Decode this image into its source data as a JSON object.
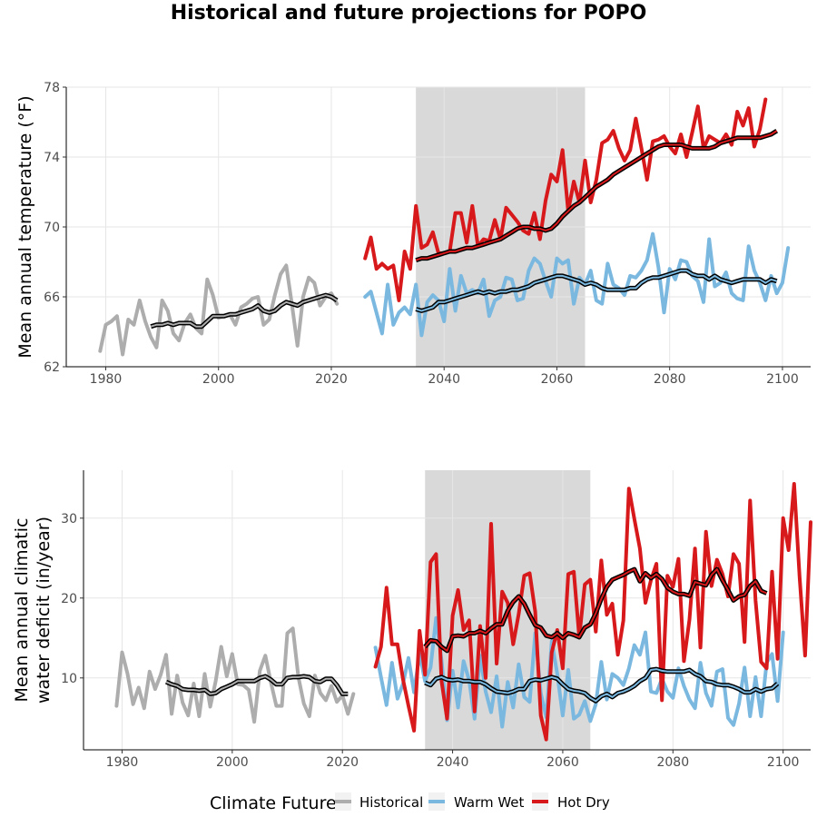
{
  "colors": {
    "historical": "#adadad",
    "warm_wet": "#7ab8e0",
    "hot_dry": "#d7191c",
    "smooth_outline": "#000000",
    "shade": "#d9d9d9",
    "grid": "#e6e6e6"
  },
  "chart_data": {
    "title": "Historical and future projections for POPO",
    "legend": {
      "title": "Climate Future",
      "placement": "bottom",
      "entries": [
        {
          "key": "historical",
          "label": "Historical"
        },
        {
          "key": "warm_wet",
          "label": "Warm Wet"
        },
        {
          "key": "hot_dry",
          "label": "Hot Dry"
        }
      ]
    },
    "panels": [
      {
        "type": "line",
        "ylabel": "Mean annual temperature (°F)",
        "xlabel": "",
        "xlim": [
          1973,
          2105
        ],
        "ylim": [
          62,
          78
        ],
        "xticks": [
          1980,
          2000,
          2020,
          2040,
          2060,
          2080,
          2100
        ],
        "yticks": [
          62,
          66,
          70,
          74,
          78
        ],
        "shaded_period": [
          2035,
          2065
        ],
        "grid": true,
        "series": [
          {
            "key": "historical",
            "x0": 1979,
            "values": [
              62.9,
              64.4,
              64.6,
              64.9,
              62.7,
              64.7,
              64.4,
              65.8,
              64.6,
              63.7,
              63.1,
              65.8,
              65.2,
              63.9,
              63.5,
              64.5,
              65.0,
              64.2,
              63.9,
              67.0,
              66.1,
              64.8,
              64.9,
              65.0,
              64.4,
              65.4,
              65.6,
              65.9,
              66.0,
              64.4,
              64.7,
              66.1,
              67.3,
              67.8,
              65.6,
              63.2,
              66.0,
              67.1,
              66.8,
              65.5,
              66.0,
              66.2,
              65.6
            ]
          },
          {
            "key": "warm_wet",
            "x0": 2026,
            "values": [
              66.0,
              66.3,
              65.1,
              63.9,
              66.7,
              64.4,
              65.1,
              65.4,
              65.0,
              66.7,
              63.8,
              65.7,
              66.1,
              65.8,
              64.6,
              67.6,
              65.2,
              67.2,
              66.2,
              66.4,
              66.2,
              67.0,
              64.9,
              65.8,
              66.0,
              67.1,
              67.0,
              65.8,
              65.9,
              67.5,
              68.2,
              67.9,
              66.9,
              66.0,
              68.2,
              67.9,
              68.1,
              65.6,
              67.1,
              66.7,
              67.5,
              65.8,
              65.6,
              67.9,
              66.7,
              66.5,
              66.1,
              67.2,
              67.1,
              67.5,
              68.1,
              69.6,
              67.7,
              65.1,
              67.6,
              67.0,
              68.1,
              68.0,
              67.2,
              66.9,
              65.7,
              69.3,
              66.6,
              66.8,
              67.4,
              66.2,
              65.9,
              65.8,
              68.9,
              67.5,
              66.8,
              65.8,
              67.2,
              66.2,
              66.8,
              68.8
            ]
          },
          {
            "key": "hot_dry",
            "x0": 2026,
            "values": [
              68.2,
              69.4,
              67.6,
              67.9,
              67.6,
              67.8,
              65.8,
              68.6,
              67.6,
              71.2,
              68.8,
              69.0,
              69.7,
              68.5,
              68.5,
              68.6,
              70.8,
              70.8,
              69.1,
              71.2,
              68.9,
              69.3,
              69.2,
              70.4,
              69.3,
              71.1,
              70.7,
              70.3,
              69.8,
              69.6,
              70.8,
              69.3,
              71.5,
              73.0,
              72.6,
              74.4,
              70.9,
              72.6,
              71.4,
              73.8,
              71.4,
              72.7,
              74.8,
              75.0,
              75.5,
              74.5,
              73.8,
              74.4,
              76.2,
              74.5,
              72.7,
              74.9,
              75.0,
              75.2,
              74.6,
              74.2,
              75.3,
              74.0,
              75.4,
              76.9,
              74.5,
              75.2,
              75.0,
              74.8,
              75.3,
              74.7,
              76.6,
              75.8,
              76.8,
              74.6,
              75.6,
              77.3
            ]
          },
          {
            "key": "historical",
            "smooth": true,
            "x0": 1988,
            "values": [
              64.3,
              64.4,
              64.4,
              64.5,
              64.4,
              64.5,
              64.5,
              64.5,
              64.3,
              64.3,
              64.6,
              64.9,
              64.9,
              64.9,
              65.0,
              65.0,
              65.1,
              65.2,
              65.3,
              65.5,
              65.2,
              65.1,
              65.2,
              65.5,
              65.7,
              65.6,
              65.5,
              65.7,
              65.8,
              65.9,
              66.0,
              66.1,
              66.0,
              65.8
            ]
          },
          {
            "key": "warm_wet",
            "smooth": true,
            "x0": 2035,
            "values": [
              65.3,
              65.2,
              65.3,
              65.4,
              65.7,
              65.7,
              65.8,
              65.9,
              66.0,
              66.1,
              66.2,
              66.3,
              66.2,
              66.3,
              66.2,
              66.3,
              66.3,
              66.4,
              66.4,
              66.5,
              66.6,
              66.8,
              66.9,
              67.0,
              67.1,
              67.2,
              67.2,
              67.1,
              67.0,
              66.9,
              66.7,
              66.8,
              66.7,
              66.5,
              66.4,
              66.4,
              66.4,
              66.4,
              66.5,
              66.5,
              66.8,
              67.0,
              67.1,
              67.1,
              67.2,
              67.3,
              67.4,
              67.5,
              67.5,
              67.3,
              67.2,
              67.2,
              67.0,
              67.2,
              67.0,
              66.9,
              66.8,
              66.9,
              67.0,
              67.0,
              67.0,
              67.0,
              66.8,
              67.0,
              66.9
            ]
          },
          {
            "key": "hot_dry",
            "smooth": true,
            "x0": 2035,
            "values": [
              68.1,
              68.2,
              68.2,
              68.3,
              68.4,
              68.5,
              68.6,
              68.6,
              68.7,
              68.8,
              68.8,
              68.9,
              69.0,
              69.1,
              69.2,
              69.3,
              69.5,
              69.7,
              69.9,
              70.0,
              70.0,
              69.9,
              69.9,
              69.8,
              69.9,
              70.2,
              70.6,
              70.9,
              71.2,
              71.4,
              71.7,
              72.0,
              72.3,
              72.5,
              72.7,
              73.0,
              73.2,
              73.4,
              73.6,
              73.8,
              74.0,
              74.2,
              74.4,
              74.6,
              74.7,
              74.7,
              74.7,
              74.7,
              74.6,
              74.5,
              74.5,
              74.5,
              74.5,
              74.6,
              74.8,
              74.9,
              75.0,
              75.1,
              75.1,
              75.1,
              75.1,
              75.1,
              75.2,
              75.3,
              75.5
            ]
          }
        ]
      },
      {
        "type": "line",
        "ylabel": "Mean annual climatic\nwater deficit (in/year)",
        "xlabel": "",
        "xlim": [
          1973,
          2105
        ],
        "ylim": [
          1,
          36
        ],
        "xticks": [
          1980,
          2000,
          2020,
          2040,
          2060,
          2080,
          2100
        ],
        "yticks": [
          10,
          20,
          30
        ],
        "shaded_period": [
          2035,
          2065
        ],
        "grid": true,
        "series": [
          {
            "key": "historical",
            "x0": 1979,
            "values": [
              6.5,
              13.2,
              10.5,
              6.7,
              8.8,
              6.2,
              10.8,
              8.6,
              10.4,
              12.9,
              5.5,
              10.3,
              6.9,
              5.3,
              9.3,
              5.2,
              10.5,
              6.4,
              9.6,
              13.9,
              10.2,
              13.0,
              9.2,
              9.1,
              8.5,
              4.5,
              10.9,
              12.8,
              9.5,
              6.5,
              6.5,
              15.6,
              16.2,
              10.1,
              6.8,
              5.2,
              10.3,
              8.1,
              7.2,
              9.0,
              7.0,
              7.8,
              5.5,
              8.0
            ]
          },
          {
            "key": "warm_wet",
            "x0": 2026,
            "values": [
              13.8,
              10.1,
              6.6,
              11.9,
              7.4,
              9.3,
              12.5,
              8.2,
              13.0,
              9.6,
              11.3,
              17.5,
              12.2,
              4.7,
              10.9,
              6.3,
              12.1,
              9.7,
              4.9,
              12.8,
              8.3,
              5.7,
              10.2,
              3.9,
              9.5,
              6.3,
              11.7,
              7.6,
              7.0,
              15.6,
              8.1,
              5.1,
              14.6,
              10.5,
              5.3,
              11.0,
              4.9,
              5.4,
              7.1,
              4.6,
              6.7,
              12.0,
              7.3,
              10.5,
              10.0,
              9.1,
              11.2,
              14.1,
              12.9,
              15.7,
              8.3,
              8.1,
              9.9,
              8.3,
              7.5,
              11.2,
              9.0,
              7.3,
              6.2,
              11.9,
              8.1,
              6.5,
              10.8,
              11.1,
              5.0,
              4.1,
              6.8,
              11.3,
              5.2,
              10.1,
              5.2,
              11.9,
              13.0,
              7.1,
              15.7
            ]
          },
          {
            "key": "hot_dry",
            "x0": 2026,
            "values": [
              11.4,
              13.9,
              21.3,
              14.2,
              14.2,
              9.8,
              6.5,
              3.4,
              15.9,
              10.4,
              24.5,
              25.5,
              9.6,
              4.9,
              17.8,
              21.0,
              16.0,
              17.2,
              5.8,
              16.5,
              10.0,
              29.3,
              11.8,
              20.8,
              19.4,
              14.2,
              18.0,
              22.8,
              23.1,
              18.3,
              5.3,
              2.3,
              13.2,
              16.0,
              11.2,
              23.0,
              23.3,
              15.1,
              21.7,
              22.3,
              15.8,
              24.7,
              17.9,
              19.3,
              12.9,
              17.2,
              33.7,
              29.9,
              26.2,
              19.4,
              22.2,
              24.3,
              7.2,
              22.8,
              21.4,
              24.9,
              12.1,
              17.3,
              26.2,
              13.8,
              28.3,
              21.5,
              24.8,
              23.0,
              20.2,
              25.5,
              24.3,
              14.5,
              32.2,
              19.7,
              12.0,
              11.2,
              23.3,
              12.4,
              30.0,
              26.0,
              34.3,
              22.5,
              12.8,
              29.5
            ]
          },
          {
            "key": "historical",
            "smooth": true,
            "x0": 1988,
            "values": [
              9.5,
              9.2,
              9.0,
              8.6,
              8.5,
              8.5,
              8.4,
              8.5,
              8.0,
              8.1,
              8.6,
              8.9,
              9.2,
              9.6,
              9.6,
              9.6,
              9.6,
              10.0,
              10.2,
              9.8,
              9.2,
              9.2,
              10.0,
              10.1,
              10.1,
              10.2,
              10.1,
              9.6,
              9.5,
              9.9,
              9.9,
              9.1,
              8.0,
              8.0
            ]
          },
          {
            "key": "warm_wet",
            "smooth": true,
            "x0": 2035,
            "values": [
              9.4,
              9.1,
              9.9,
              10.1,
              9.8,
              9.7,
              9.8,
              9.6,
              9.6,
              9.5,
              9.5,
              9.2,
              8.7,
              8.3,
              8.2,
              8.1,
              8.3,
              8.6,
              8.6,
              9.6,
              9.8,
              9.7,
              9.9,
              10.1,
              9.9,
              9.2,
              8.6,
              8.4,
              8.3,
              8.1,
              7.5,
              7.1,
              7.7,
              8.0,
              7.6,
              8.1,
              8.3,
              8.6,
              9.0,
              9.6,
              10.0,
              11.0,
              11.1,
              10.9,
              10.8,
              10.8,
              10.8,
              10.8,
              11.0,
              10.5,
              10.2,
              9.6,
              9.5,
              9.2,
              9.1,
              9.1,
              8.9,
              8.6,
              8.2,
              8.2,
              8.6,
              8.3,
              8.6,
              8.7,
              9.3
            ]
          },
          {
            "key": "hot_dry",
            "smooth": true,
            "x0": 2035,
            "values": [
              13.9,
              14.7,
              14.6,
              13.9,
              13.4,
              15.2,
              15.3,
              15.2,
              15.6,
              15.6,
              15.9,
              15.6,
              16.2,
              16.7,
              16.7,
              18.4,
              19.5,
              20.2,
              19.3,
              17.9,
              16.6,
              16.3,
              15.3,
              15.1,
              15.6,
              15.0,
              15.6,
              15.4,
              15.1,
              16.3,
              16.7,
              18.1,
              19.9,
              21.4,
              22.3,
              22.6,
              22.9,
              23.3,
              23.6,
              22.1,
              23.1,
              22.5,
              23.0,
              22.4,
              21.3,
              20.8,
              20.5,
              20.5,
              20.3,
              22.0,
              21.8,
              21.6,
              22.9,
              23.6,
              22.2,
              21.0,
              19.7,
              20.2,
              20.4,
              21.5,
              22.1,
              20.9,
              20.6
            ]
          }
        ]
      }
    ]
  }
}
